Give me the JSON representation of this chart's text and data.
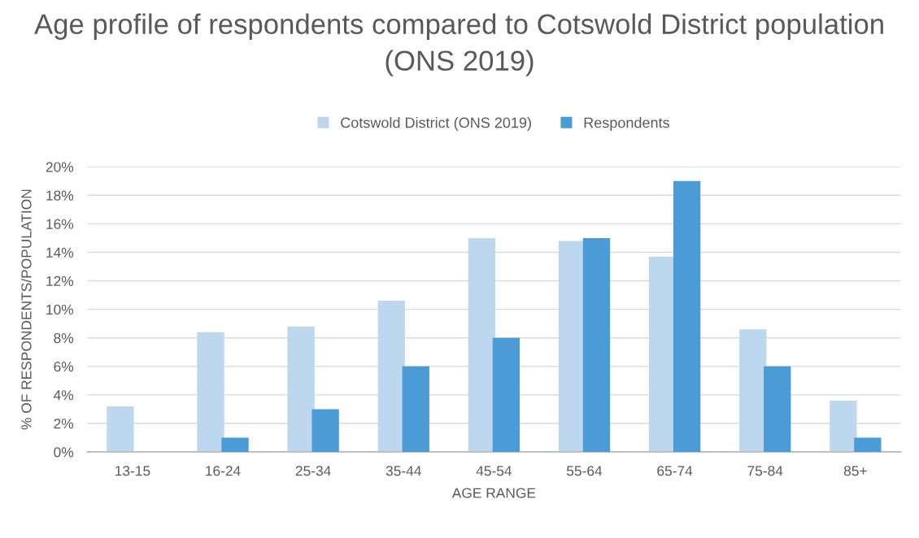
{
  "chart_data": {
    "type": "bar",
    "title": "Age profile of respondents compared to Cotswold District population (ONS 2019)",
    "xlabel": "AGE RANGE",
    "ylabel": "% OF RESPONDENTS/POPULATION",
    "categories": [
      "13-15",
      "16-24",
      "25-34",
      "35-44",
      "45-54",
      "55-64",
      "65-74",
      "75-84",
      "85+"
    ],
    "series": [
      {
        "name": "Cotswold District (ONS 2019)",
        "color": "#bdd7ee",
        "values": [
          3.2,
          8.4,
          8.8,
          10.6,
          15.0,
          14.8,
          13.7,
          8.6,
          3.6
        ]
      },
      {
        "name": "Respondents",
        "color": "#4a9bd6",
        "values": [
          0,
          1,
          3,
          6,
          8,
          15,
          19,
          6,
          1
        ]
      }
    ],
    "ylim": [
      0,
      20
    ],
    "yticks": [
      {
        "value": 0,
        "label": "0%"
      },
      {
        "value": 2,
        "label": "2%"
      },
      {
        "value": 4,
        "label": "4%"
      },
      {
        "value": 6,
        "label": "6%"
      },
      {
        "value": 8,
        "label": "8%"
      },
      {
        "value": 10,
        "label": "10%"
      },
      {
        "value": 12,
        "label": "12%"
      },
      {
        "value": 14,
        "label": "14%"
      },
      {
        "value": 16,
        "label": "16%"
      },
      {
        "value": 18,
        "label": "18%"
      },
      {
        "value": 20,
        "label": "20%"
      }
    ],
    "grid": "y",
    "legend": "top"
  }
}
